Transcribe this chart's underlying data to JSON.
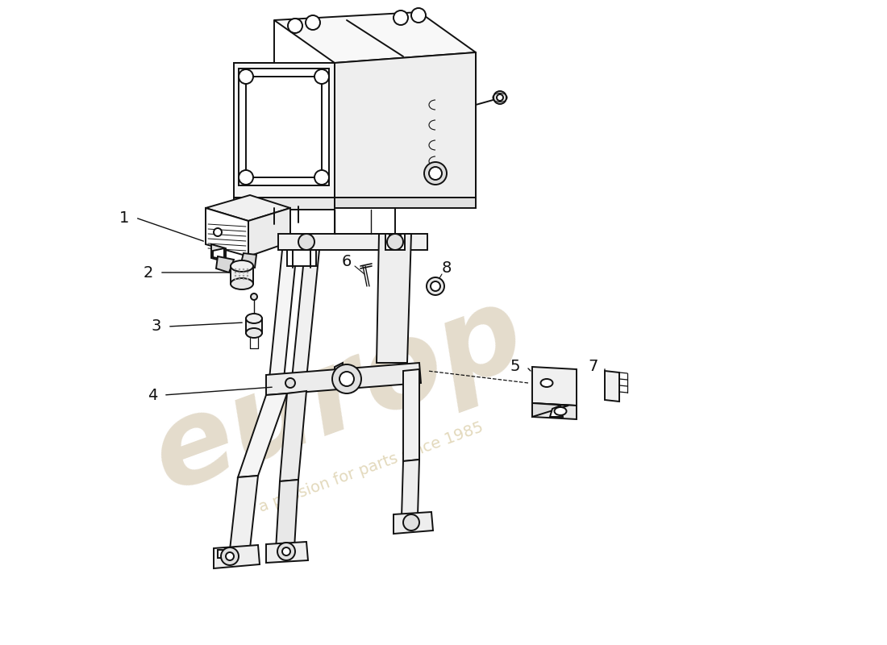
{
  "background_color": "#ffffff",
  "line_color": "#111111",
  "lw": 1.4,
  "watermark_euro_color": "#c9b99a",
  "watermark_text_color": "#d0c090",
  "fig_width": 11.0,
  "fig_height": 8.0,
  "dpi": 100
}
